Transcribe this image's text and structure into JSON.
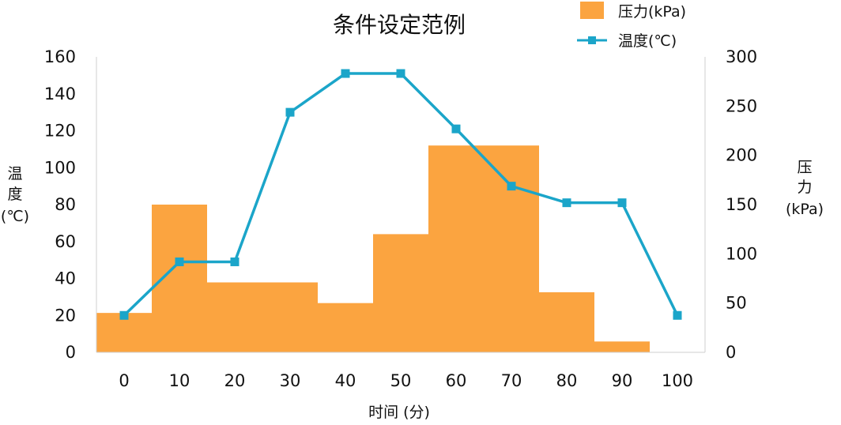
{
  "chart_data": {
    "type": "bar+line",
    "title": "条件设定范例",
    "xlabel": "时间 (分)",
    "x": [
      0,
      10,
      20,
      30,
      40,
      50,
      60,
      70,
      80,
      90,
      100
    ],
    "bars": {
      "name": "压力(kPa)",
      "axis": "right",
      "color": "#FBA440",
      "segments": [
        {
          "x_start": 0,
          "x_end": 10,
          "value": 40
        },
        {
          "x_start": 10,
          "x_end": 20,
          "value": 150
        },
        {
          "x_start": 20,
          "x_end": 40,
          "value": 71
        },
        {
          "x_start": 40,
          "x_end": 50,
          "value": 50
        },
        {
          "x_start": 50,
          "x_end": 60,
          "value": 120
        },
        {
          "x_start": 60,
          "x_end": 80,
          "value": 210
        },
        {
          "x_start": 80,
          "x_end": 90,
          "value": 61
        },
        {
          "x_start": 90,
          "x_end": 100,
          "value": 11
        }
      ]
    },
    "series": [
      {
        "name": "温度(℃)",
        "axis": "left",
        "color": "#1BA5C9",
        "values": [
          20,
          49,
          49,
          130,
          151,
          151,
          121,
          90,
          81,
          81,
          20
        ]
      }
    ],
    "y_left": {
      "label_lines": [
        "温",
        "度",
        "(℃)"
      ],
      "ylim": [
        0,
        160
      ],
      "ticks": [
        0,
        20,
        40,
        60,
        80,
        100,
        120,
        140,
        160
      ]
    },
    "y_right": {
      "label_lines": [
        "压",
        "力",
        "(kPa)"
      ],
      "ylim": [
        0,
        300
      ],
      "ticks": [
        0,
        50,
        100,
        150,
        200,
        250,
        300
      ]
    },
    "legend": {
      "position": "top-right"
    },
    "grid": false
  }
}
